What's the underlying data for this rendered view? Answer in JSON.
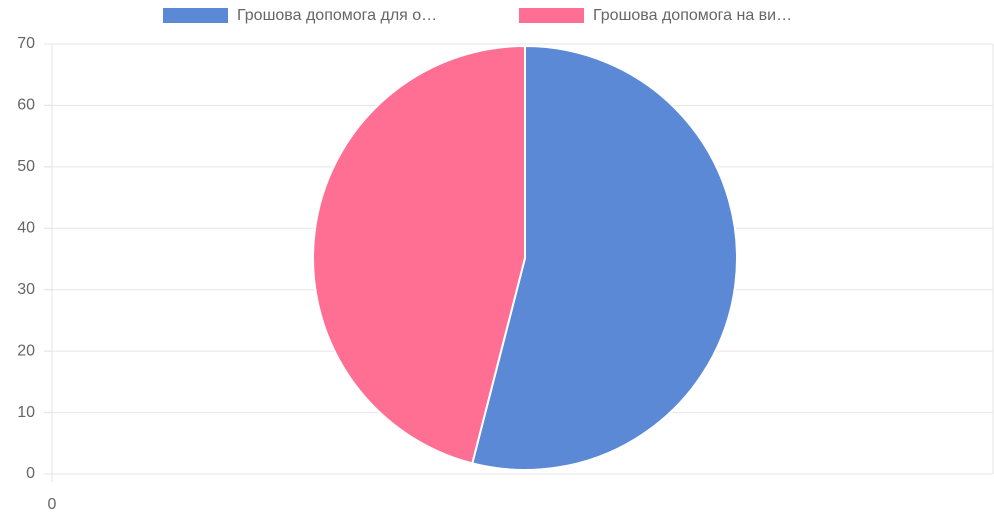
{
  "chart_data": {
    "type": "pie",
    "categories": [
      "Грошова допомога для о…",
      "Грошова допомога на ви…"
    ],
    "values": [
      54,
      46
    ],
    "colors": [
      "#5b89d6",
      "#ff6f94"
    ],
    "ylim": [
      0,
      70
    ],
    "yticks": [
      0,
      10,
      20,
      30,
      40,
      50,
      60,
      70
    ],
    "xticks": [
      0
    ],
    "grid": true,
    "legend": "top"
  }
}
